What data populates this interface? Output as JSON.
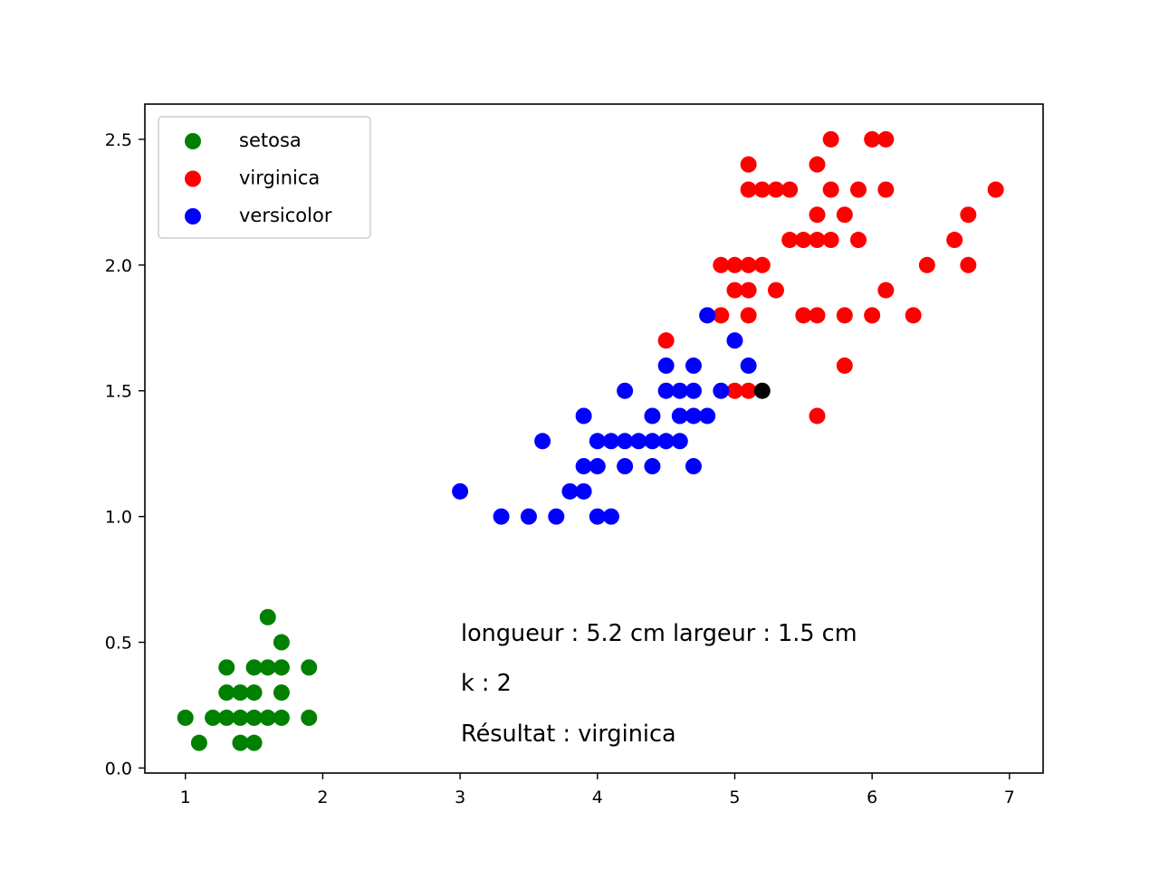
{
  "chart_data": {
    "type": "scatter",
    "xlim": [
      0.705,
      7.245
    ],
    "ylim": [
      -0.02,
      2.64
    ],
    "x_ticks": [
      1,
      2,
      3,
      4,
      5,
      6,
      7
    ],
    "y_ticks": [
      0.0,
      0.5,
      1.0,
      1.5,
      2.0,
      2.5
    ],
    "x_tick_labels": [
      "1",
      "2",
      "3",
      "4",
      "5",
      "6",
      "7"
    ],
    "y_tick_labels": [
      "0.0",
      "0.5",
      "1.0",
      "1.5",
      "2.0",
      "2.5"
    ],
    "grid": false,
    "legend_position": "top-left",
    "series": [
      {
        "name": "setosa",
        "color": "#008000",
        "points": [
          [
            1.0,
            0.2
          ],
          [
            1.1,
            0.1
          ],
          [
            1.2,
            0.2
          ],
          [
            1.3,
            0.2
          ],
          [
            1.3,
            0.3
          ],
          [
            1.3,
            0.4
          ],
          [
            1.4,
            0.1
          ],
          [
            1.4,
            0.2
          ],
          [
            1.4,
            0.3
          ],
          [
            1.5,
            0.1
          ],
          [
            1.5,
            0.2
          ],
          [
            1.5,
            0.3
          ],
          [
            1.5,
            0.4
          ],
          [
            1.6,
            0.2
          ],
          [
            1.6,
            0.4
          ],
          [
            1.6,
            0.6
          ],
          [
            1.7,
            0.2
          ],
          [
            1.7,
            0.3
          ],
          [
            1.7,
            0.4
          ],
          [
            1.7,
            0.5
          ],
          [
            1.9,
            0.2
          ],
          [
            1.9,
            0.4
          ]
        ]
      },
      {
        "name": "virginica",
        "color": "#ff0000",
        "points": [
          [
            4.5,
            1.7
          ],
          [
            4.9,
            1.8
          ],
          [
            4.9,
            2.0
          ],
          [
            5.0,
            1.5
          ],
          [
            5.0,
            1.9
          ],
          [
            5.0,
            2.0
          ],
          [
            5.1,
            1.5
          ],
          [
            5.1,
            1.8
          ],
          [
            5.1,
            1.9
          ],
          [
            5.1,
            2.0
          ],
          [
            5.1,
            2.3
          ],
          [
            5.1,
            2.4
          ],
          [
            5.2,
            2.0
          ],
          [
            5.2,
            2.3
          ],
          [
            5.3,
            1.9
          ],
          [
            5.3,
            2.3
          ],
          [
            5.4,
            2.1
          ],
          [
            5.4,
            2.3
          ],
          [
            5.5,
            1.8
          ],
          [
            5.5,
            2.1
          ],
          [
            5.6,
            1.4
          ],
          [
            5.6,
            1.8
          ],
          [
            5.6,
            2.1
          ],
          [
            5.6,
            2.2
          ],
          [
            5.6,
            2.4
          ],
          [
            5.7,
            2.1
          ],
          [
            5.7,
            2.3
          ],
          [
            5.7,
            2.5
          ],
          [
            5.8,
            1.6
          ],
          [
            5.8,
            1.8
          ],
          [
            5.8,
            2.2
          ],
          [
            5.9,
            2.1
          ],
          [
            5.9,
            2.3
          ],
          [
            6.0,
            1.8
          ],
          [
            6.0,
            2.5
          ],
          [
            6.1,
            1.9
          ],
          [
            6.1,
            2.3
          ],
          [
            6.1,
            2.5
          ],
          [
            6.3,
            1.8
          ],
          [
            6.4,
            2.0
          ],
          [
            6.6,
            2.1
          ],
          [
            6.7,
            2.0
          ],
          [
            6.7,
            2.2
          ],
          [
            6.9,
            2.3
          ]
        ]
      },
      {
        "name": "versicolor",
        "color": "#0000ff",
        "points": [
          [
            3.0,
            1.1
          ],
          [
            3.3,
            1.0
          ],
          [
            3.5,
            1.0
          ],
          [
            3.6,
            1.3
          ],
          [
            3.7,
            1.0
          ],
          [
            3.8,
            1.1
          ],
          [
            3.9,
            1.1
          ],
          [
            3.9,
            1.2
          ],
          [
            3.9,
            1.4
          ],
          [
            4.0,
            1.0
          ],
          [
            4.0,
            1.2
          ],
          [
            4.0,
            1.3
          ],
          [
            4.1,
            1.0
          ],
          [
            4.1,
            1.3
          ],
          [
            4.2,
            1.2
          ],
          [
            4.2,
            1.3
          ],
          [
            4.2,
            1.5
          ],
          [
            4.3,
            1.3
          ],
          [
            4.4,
            1.2
          ],
          [
            4.4,
            1.3
          ],
          [
            4.4,
            1.4
          ],
          [
            4.5,
            1.3
          ],
          [
            4.5,
            1.5
          ],
          [
            4.5,
            1.6
          ],
          [
            4.6,
            1.3
          ],
          [
            4.6,
            1.4
          ],
          [
            4.6,
            1.5
          ],
          [
            4.7,
            1.2
          ],
          [
            4.7,
            1.4
          ],
          [
            4.7,
            1.5
          ],
          [
            4.7,
            1.6
          ],
          [
            4.8,
            1.4
          ],
          [
            4.8,
            1.8
          ],
          [
            4.9,
            1.5
          ],
          [
            5.0,
            1.7
          ],
          [
            5.1,
            1.6
          ]
        ]
      }
    ],
    "query_point": {
      "x": 5.2,
      "y": 1.5,
      "color": "#000000"
    },
    "annotations": [
      "longueur : 5.2 cm largeur : 1.5 cm",
      "k : 2",
      "Résultat : virginica"
    ]
  }
}
